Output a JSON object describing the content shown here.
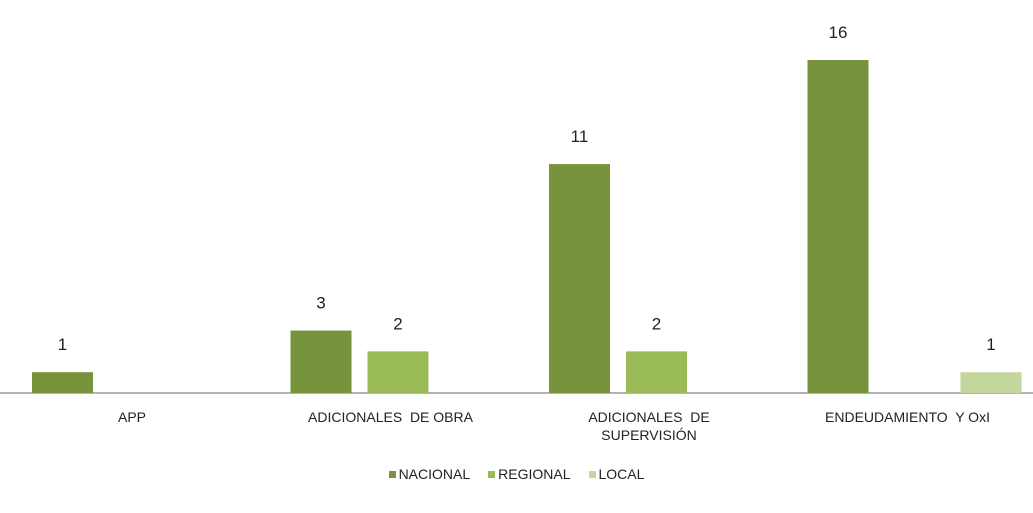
{
  "chart_data": {
    "type": "bar",
    "categories": [
      "APP",
      "ADICIONALES  DE OBRA",
      "ADICIONALES  DE\nSUPERVISIÓN",
      "ENDEUDAMIENTO  Y OxI"
    ],
    "series": [
      {
        "name": "NACIONAL",
        "color": "#77933c",
        "values": [
          1,
          3,
          11,
          16
        ]
      },
      {
        "name": "REGIONAL",
        "color": "#9bbb59",
        "values": [
          null,
          2,
          2,
          null
        ]
      },
      {
        "name": "LOCAL",
        "color": "#c3d69b",
        "values": [
          null,
          null,
          null,
          1
        ]
      }
    ],
    "legend": "bottom"
  }
}
